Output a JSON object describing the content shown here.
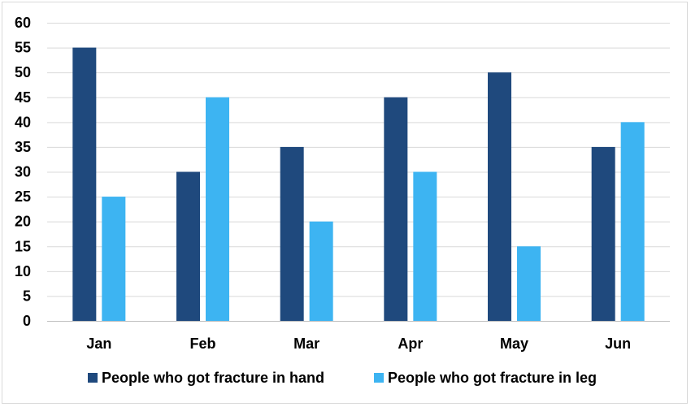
{
  "chart_data": {
    "type": "bar",
    "categories": [
      "Jan",
      "Feb",
      "Mar",
      "Apr",
      "May",
      "Jun"
    ],
    "series": [
      {
        "name": "People who got fracture in hand",
        "values": [
          55,
          30,
          35,
          45,
          50,
          35
        ],
        "color": "#1f497d"
      },
      {
        "name": "People who got fracture in leg",
        "values": [
          25,
          45,
          20,
          30,
          15,
          40
        ],
        "color": "#3db4f2"
      }
    ],
    "title": "",
    "xlabel": "",
    "ylabel": "",
    "ylim": [
      0,
      60
    ],
    "yticks": [
      0,
      5,
      10,
      15,
      20,
      25,
      30,
      35,
      40,
      45,
      50,
      55,
      60
    ],
    "grid": true,
    "legend_position": "bottom"
  }
}
